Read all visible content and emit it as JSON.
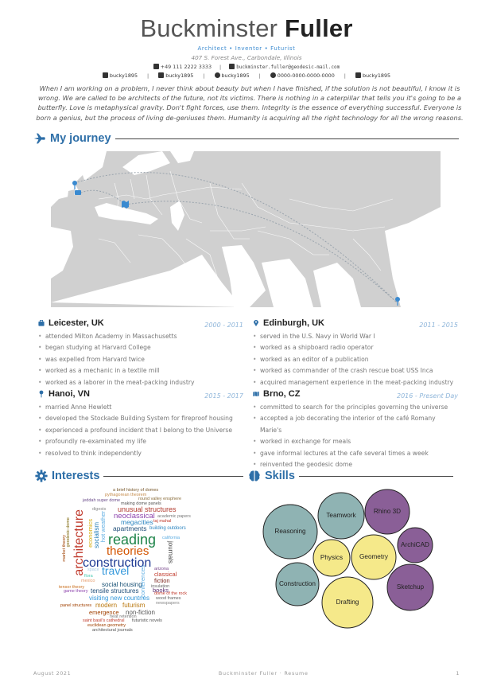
{
  "header": {
    "first_name": "Buckminster",
    "last_name": "Fuller",
    "tagline": "Architect • Inventor • Futurist",
    "address": "407 S. Forest Ave., Carbondale, Illinois",
    "phone": "+49 111 2222 3333",
    "email": "buckminster.fuller@geodesic-mail.com",
    "social": [
      {
        "icon": "instagram-icon",
        "label": "bucky1895"
      },
      {
        "icon": "linkedin-icon",
        "label": "bucky1895"
      },
      {
        "icon": "twitter-icon",
        "label": "bucky1895"
      },
      {
        "icon": "orcid-icon",
        "label": "0000-0000-0000-0000"
      },
      {
        "icon": "github-icon",
        "label": "bucky1895"
      }
    ]
  },
  "quote": "When I am working on a problem, I never think about beauty but when I have finished, if the solution is not beautiful, I know it is wrong. We are called to be architects of the future, not its victims. There is nothing in a caterpillar that tells you it's going to be a butterfly. Love is metaphysical gravity. Don't fight forces, use them. Integrity is the essence of everything successful. Everyone is born a genius, but the process of living de-geniuses them. Humanity is acquiring all the right technology for all the wrong reasons.",
  "journey": {
    "title": "My journey",
    "places": [
      {
        "name": "Leicester, UK",
        "icon": "briefcase-icon",
        "dates": "2000 - 2011",
        "items": [
          "attended Milton Academy in Massachusetts",
          "began studying at Harvard College",
          "was expelled from Harvard twice",
          "worked as a mechanic in a textile mill",
          "worked as a laborer in the meat-packing industry"
        ]
      },
      {
        "name": "Edinburgh, UK",
        "icon": "map-pin-icon",
        "dates": "2011 - 2015",
        "items": [
          "served in the U.S. Navy in World War I",
          "worked as a shipboard radio operator",
          "worked as an editor of a publication",
          "worked as commander of the crash rescue boat USS Inca",
          "acquired management experience in the meat-packing industry"
        ]
      },
      {
        "name": "Hanoi, VN",
        "icon": "push-pin-icon",
        "dates": "2015 - 2017",
        "items": [
          "married Anne Hewlett",
          "developed the Stockade Building System for fireproof housing",
          "experienced a profound incident that I belong to the Universe",
          "profoundly re-examinated my life",
          "resolved to think independently"
        ]
      },
      {
        "name": "Brno, CZ",
        "icon": "map-icon",
        "dates": "2016 - Present Day",
        "items": [
          "committed to search for the principles governing the universe",
          "accepted a job decorating the interior of the café Romany Marie's",
          "worked in exchange for meals",
          "gave informal lectures at the cafe several times a week",
          "reinvented the geodesic dome"
        ]
      }
    ]
  },
  "interests": {
    "title": "Interests",
    "words": [
      {
        "text": "a brief history of domes",
        "color": "#7a5a2e"
      },
      {
        "text": "pythagorean theorem",
        "color": "#c58b4a"
      },
      {
        "text": "round valley ensphere",
        "color": "#8a6d3b"
      },
      {
        "text": "jeddah super dome",
        "color": "#6b4c8a"
      },
      {
        "text": "making dome panels",
        "color": "#555555"
      },
      {
        "text": "digests",
        "color": "#888888"
      },
      {
        "text": "unusual structures",
        "color": "#b03a2e"
      },
      {
        "text": "neoclassical",
        "color": "#8e44ad"
      },
      {
        "text": "academic papers",
        "color": "#777777"
      },
      {
        "text": "megacities",
        "color": "#2e86c1"
      },
      {
        "text": "taj mahal",
        "color": "#c0392b"
      },
      {
        "text": "apartments",
        "color": "#1f4e79"
      },
      {
        "text": "building outdoors",
        "color": "#2e86c1"
      },
      {
        "text": "california",
        "color": "#5dade2"
      },
      {
        "text": "reading",
        "color": "#1e8449"
      },
      {
        "text": "theories",
        "color": "#d35400"
      },
      {
        "text": "journals",
        "color": "#444444"
      },
      {
        "text": "architecture",
        "color": "#c0392b"
      },
      {
        "text": "economics",
        "color": "#d4ac0d"
      },
      {
        "text": "socialism",
        "color": "#2980b9"
      },
      {
        "text": "hot weather",
        "color": "#5dade2"
      },
      {
        "text": "market theory",
        "color": "#a04000"
      },
      {
        "text": "geodesic dome",
        "color": "#7d6608"
      },
      {
        "text": "construction",
        "color": "#1f3a93"
      },
      {
        "text": "space",
        "color": "#a9cce3"
      },
      {
        "text": "travel",
        "color": "#3498db"
      },
      {
        "text": "arizona",
        "color": "#76448a"
      },
      {
        "text": "classical",
        "color": "#c0392b"
      },
      {
        "text": "fiction",
        "color": "#7b241c"
      },
      {
        "text": "flora",
        "color": "#48c9b0"
      },
      {
        "text": "mexico",
        "color": "#e59866"
      },
      {
        "text": "social housing",
        "color": "#1a5276"
      },
      {
        "text": "insulation",
        "color": "#666666"
      },
      {
        "text": "tensor theory",
        "color": "#ca6f1e"
      },
      {
        "text": "game theory",
        "color": "#8e44ad"
      },
      {
        "text": "tensile structures",
        "color": "#1f4e79"
      },
      {
        "text": "conferences",
        "color": "#5dade2"
      },
      {
        "text": "books",
        "color": "#5b2c6f"
      },
      {
        "text": "dome of the rock",
        "color": "#c0392b"
      },
      {
        "text": "visiting new countries",
        "color": "#3498db"
      },
      {
        "text": "wood frames",
        "color": "#666666"
      },
      {
        "text": "newspapers",
        "color": "#888888"
      },
      {
        "text": "panel structures",
        "color": "#a04000"
      },
      {
        "text": "modern",
        "color": "#b9770e"
      },
      {
        "text": "futurism",
        "color": "#b9770e"
      },
      {
        "text": "emergence",
        "color": "#a04000"
      },
      {
        "text": "non-fiction",
        "color": "#555555"
      },
      {
        "text": "heat retention",
        "color": "#777777"
      },
      {
        "text": "saint basil's cathedral",
        "color": "#c0392b"
      },
      {
        "text": "futuristic novels",
        "color": "#555555"
      },
      {
        "text": "euclidean geometry",
        "color": "#a04000"
      },
      {
        "text": "architectural journals",
        "color": "#555555"
      }
    ]
  },
  "skills": {
    "title": "Skills",
    "colors": {
      "teal": "#8fb3b3",
      "yellow": "#f5e98a",
      "purple": "#8a5f97"
    },
    "bubbles": [
      {
        "label": "Reasoning",
        "group": "teal"
      },
      {
        "label": "Teamwork",
        "group": "teal"
      },
      {
        "label": "Rhino 3D",
        "group": "purple"
      },
      {
        "label": "ArchiCAD",
        "group": "purple"
      },
      {
        "label": "Physics",
        "group": "yellow"
      },
      {
        "label": "Geometry",
        "group": "yellow"
      },
      {
        "label": "Construction",
        "group": "teal"
      },
      {
        "label": "Sketchup",
        "group": "purple"
      },
      {
        "label": "Drafting",
        "group": "yellow"
      }
    ]
  },
  "footer": {
    "date": "August 2021",
    "title": "Buckminster Fuller · Resume",
    "page": "1"
  }
}
